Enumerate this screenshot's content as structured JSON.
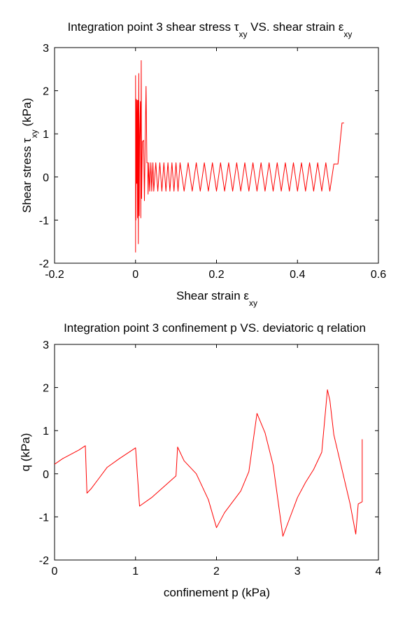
{
  "chart_data": [
    {
      "type": "line",
      "title_parts": [
        "Integration point 3 shear stress ",
        "τ",
        "xy",
        " VS. shear strain ",
        "ε",
        "xy"
      ],
      "xlabel_parts": [
        "Shear strain ",
        "ε",
        "xy"
      ],
      "ylabel_parts": [
        "Shear stress ",
        "τ",
        "xy",
        " (kPa)"
      ],
      "xlim": [
        -0.2,
        0.6
      ],
      "ylim": [
        -2,
        3
      ],
      "xticks": [
        -0.2,
        0,
        0.2,
        0.4,
        0.6
      ],
      "yticks": [
        -2,
        -1,
        0,
        1,
        2,
        3
      ],
      "xtick_labels": [
        "-0.2",
        "0",
        "0.2",
        "0.4",
        "0.6"
      ],
      "ytick_labels": [
        "-2",
        "-1",
        "0",
        "1",
        "2",
        "3"
      ],
      "grid": false,
      "line_color": "#ff0000",
      "series": [
        {
          "x": [
            0.0,
            0.0,
            0.001,
            0.002,
            0.003,
            0.004,
            0.005,
            0.006,
            0.007,
            0.008,
            0.009,
            0.01,
            0.012,
            0.013,
            0.014,
            0.015,
            0.017,
            0.02,
            0.022,
            0.024,
            0.026,
            0.028,
            0.03,
            0.031,
            0.033,
            0.035,
            0.038,
            0.04,
            0.043,
            0.045,
            0.05,
            0.055,
            0.06,
            0.065,
            0.07,
            0.075,
            0.08,
            0.085,
            0.09,
            0.095,
            0.1,
            0.105,
            0.11,
            0.12,
            0.13,
            0.14,
            0.15,
            0.16,
            0.17,
            0.18,
            0.19,
            0.2,
            0.21,
            0.22,
            0.23,
            0.24,
            0.25,
            0.26,
            0.27,
            0.28,
            0.29,
            0.3,
            0.31,
            0.32,
            0.33,
            0.34,
            0.35,
            0.36,
            0.37,
            0.38,
            0.39,
            0.4,
            0.41,
            0.42,
            0.43,
            0.44,
            0.45,
            0.46,
            0.47,
            0.48,
            0.49,
            0.5,
            0.51,
            0.515
          ],
          "y": [
            -1.75,
            2.35,
            -1.0,
            1.8,
            -0.15,
            1.78,
            -0.95,
            1.78,
            -1.55,
            2.4,
            -0.9,
            0.8,
            1.75,
            -0.95,
            2.7,
            -0.5,
            0.82,
            0.85,
            -0.55,
            0.85,
            2.1,
            0.33,
            0.33,
            -0.4,
            0.33,
            -0.33,
            0.33,
            -0.33,
            0.33,
            -0.33,
            0.33,
            -0.33,
            0.33,
            -0.33,
            0.33,
            -0.33,
            0.33,
            -0.33,
            0.33,
            -0.33,
            0.33,
            -0.33,
            0.33,
            -0.33,
            0.33,
            -0.33,
            0.33,
            -0.33,
            0.33,
            -0.33,
            0.33,
            -0.33,
            0.33,
            -0.33,
            0.33,
            -0.33,
            0.33,
            -0.33,
            0.33,
            -0.33,
            0.33,
            -0.33,
            0.33,
            -0.33,
            0.33,
            -0.33,
            0.33,
            -0.33,
            0.33,
            -0.33,
            0.33,
            -0.33,
            0.33,
            -0.33,
            0.33,
            -0.33,
            0.33,
            -0.33,
            0.33,
            -0.33,
            0.3,
            0.3,
            1.25,
            1.25
          ]
        }
      ]
    },
    {
      "type": "line",
      "title": "Integration point 3 confinement p VS. deviatoric q relation",
      "xlabel": "confinement p (kPa)",
      "ylabel": "q (kPa)",
      "xlim": [
        0,
        4
      ],
      "ylim": [
        -2,
        3
      ],
      "xticks": [
        0,
        1,
        2,
        3,
        4
      ],
      "yticks": [
        -2,
        -1,
        0,
        1,
        2,
        3
      ],
      "xtick_labels": [
        "0",
        "1",
        "2",
        "3",
        "4"
      ],
      "ytick_labels": [
        "-2",
        "-1",
        "0",
        "1",
        "2",
        "3"
      ],
      "grid": false,
      "line_color": "#ff0000",
      "series": [
        {
          "x": [
            0.0,
            0.1,
            0.2,
            0.3,
            0.38,
            0.4,
            0.45,
            0.55,
            0.65,
            0.8,
            1.0,
            1.05,
            1.2,
            1.35,
            1.5,
            1.52,
            1.6,
            1.75,
            1.9,
            2.0,
            2.1,
            2.3,
            2.4,
            2.5,
            2.6,
            2.7,
            2.82,
            2.9,
            3.0,
            3.1,
            3.2,
            3.3,
            3.37,
            3.4,
            3.45,
            3.55,
            3.65,
            3.72,
            3.75,
            3.8,
            3.8
          ],
          "y": [
            0.22,
            0.35,
            0.45,
            0.55,
            0.65,
            -0.45,
            -0.35,
            -0.1,
            0.15,
            0.35,
            0.6,
            -0.75,
            -0.55,
            -0.3,
            -0.05,
            0.62,
            0.3,
            0.0,
            -0.6,
            -1.25,
            -0.9,
            -0.4,
            0.05,
            1.4,
            0.95,
            0.2,
            -1.45,
            -1.05,
            -0.55,
            -0.2,
            0.1,
            0.5,
            1.95,
            1.7,
            0.9,
            0.1,
            -0.7,
            -1.4,
            -0.7,
            -0.65,
            0.8
          ]
        }
      ]
    }
  ]
}
